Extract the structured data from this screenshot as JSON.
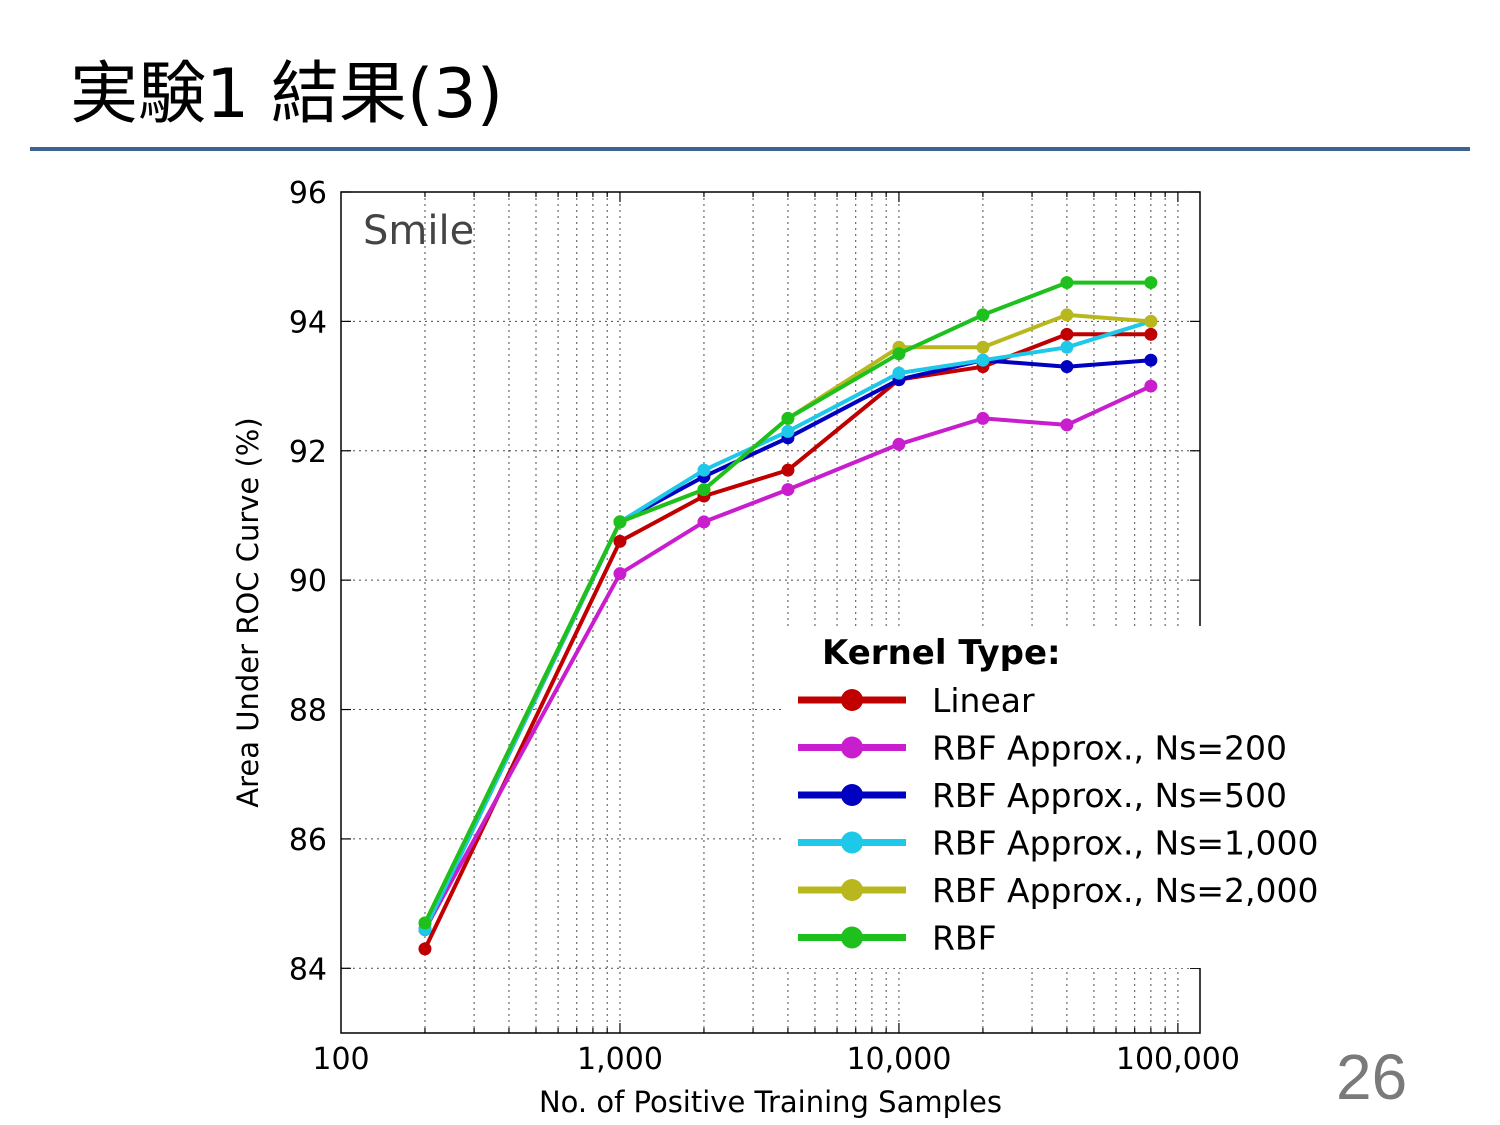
{
  "slide": {
    "title": "実験1 結果(3)",
    "page_number": "26",
    "accent_color": "#3c6391"
  },
  "chart_data": {
    "type": "line",
    "title": "",
    "annotation": "Smile",
    "xlabel": "No. of Positive Training Samples",
    "ylabel": "Area Under ROC Curve (%)",
    "xscale": "log",
    "xlim": [
      100,
      120000
    ],
    "ylim": [
      83,
      96
    ],
    "x_ticks": [
      {
        "value": 100,
        "label": "100"
      },
      {
        "value": 1000,
        "label": "1,000"
      },
      {
        "value": 10000,
        "label": "10,000"
      },
      {
        "value": 100000,
        "label": "100,000"
      }
    ],
    "y_ticks": [
      {
        "value": 84,
        "label": "84"
      },
      {
        "value": 86,
        "label": "86"
      },
      {
        "value": 88,
        "label": "88"
      },
      {
        "value": 90,
        "label": "90"
      },
      {
        "value": 92,
        "label": "92"
      },
      {
        "value": 94,
        "label": "94"
      },
      {
        "value": 96,
        "label": "96"
      }
    ],
    "grid": true,
    "legend": {
      "title": "Kernel Type:",
      "placement": "lower-right"
    },
    "x": [
      200,
      1000,
      2000,
      4000,
      10000,
      20000,
      40000,
      80000
    ],
    "series": [
      {
        "name": "Linear",
        "color": "#c00000",
        "values": [
          84.3,
          90.6,
          91.3,
          91.7,
          93.1,
          93.3,
          93.8,
          93.8
        ]
      },
      {
        "name": "RBF Approx., Ns=200",
        "color": "#c81ecd",
        "values": [
          84.6,
          90.1,
          90.9,
          91.4,
          92.1,
          92.5,
          92.4,
          93.0
        ]
      },
      {
        "name": "RBF Approx., Ns=500",
        "color": "#0000c0",
        "values": [
          84.6,
          90.9,
          91.6,
          92.2,
          93.1,
          93.4,
          93.3,
          93.4
        ]
      },
      {
        "name": "RBF Approx., Ns=1,000",
        "color": "#1ec8e8",
        "values": [
          84.6,
          90.9,
          91.7,
          92.3,
          93.2,
          93.4,
          93.6,
          94.0
        ]
      },
      {
        "name": "RBF Approx., Ns=2,000",
        "color": "#b8b81e",
        "values": [
          84.7,
          90.9,
          91.4,
          92.5,
          93.6,
          93.6,
          94.1,
          94.0
        ]
      },
      {
        "name": "RBF",
        "color": "#1ec01e",
        "values": [
          84.7,
          90.9,
          91.4,
          92.5,
          93.5,
          94.1,
          94.6,
          94.6
        ]
      }
    ]
  }
}
